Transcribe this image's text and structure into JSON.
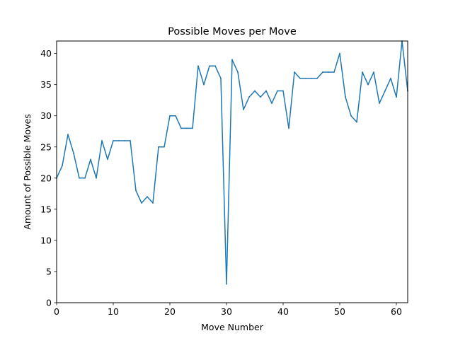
{
  "chart_data": {
    "type": "line",
    "title": "Possible Moves per Move",
    "xlabel": "Move Number",
    "ylabel": "Amount of Possible Moves",
    "xlim": [
      0,
      62
    ],
    "ylim": [
      0,
      42
    ],
    "xticks": [
      0,
      10,
      20,
      30,
      40,
      50,
      60
    ],
    "yticks": [
      0,
      5,
      10,
      15,
      20,
      25,
      30,
      35,
      40
    ],
    "grid": false,
    "legend": "none",
    "series": [
      {
        "color": "#1f77b4",
        "x": [
          0,
          1,
          2,
          3,
          4,
          5,
          6,
          7,
          8,
          9,
          10,
          11,
          12,
          13,
          14,
          15,
          16,
          17,
          18,
          19,
          20,
          21,
          22,
          23,
          24,
          25,
          26,
          27,
          28,
          29,
          30,
          31,
          32,
          33,
          34,
          35,
          36,
          37,
          38,
          39,
          40,
          41,
          42,
          43,
          44,
          45,
          46,
          47,
          48,
          49,
          50,
          51,
          52,
          53,
          54,
          55,
          56,
          57,
          58,
          59,
          60,
          61,
          62
        ],
        "y": [
          20,
          22,
          27,
          24,
          20,
          20,
          23,
          20,
          26,
          23,
          26,
          26,
          26,
          26,
          18,
          16,
          17,
          16,
          25,
          25,
          30,
          30,
          28,
          28,
          28,
          38,
          35,
          38,
          38,
          36,
          3,
          39,
          37,
          31,
          33,
          34,
          33,
          34,
          32,
          34,
          34,
          28,
          37,
          36,
          36,
          36,
          36,
          37,
          37,
          37,
          40,
          33,
          30,
          29,
          37,
          35,
          37,
          32,
          34,
          36,
          33,
          42,
          34
        ]
      }
    ]
  }
}
